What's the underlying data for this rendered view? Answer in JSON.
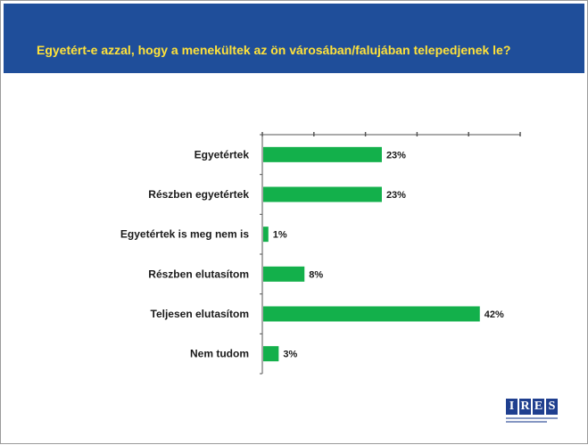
{
  "header": {
    "title": "Egyetért-e azzal, hogy a menekültek az ön városában/falujában telepedjenek le?"
  },
  "colors": {
    "header_bg": "#1f4e9a",
    "title_text": "#ffe23a",
    "bar": "#13b04b",
    "axis": "#555555"
  },
  "logo": {
    "letters": [
      "I",
      "R",
      "E",
      "S"
    ]
  },
  "chart_data": {
    "type": "bar",
    "orientation": "horizontal",
    "categories": [
      "Egyetértek",
      "Részben egyetértek",
      "Egyetértek is meg nem is",
      "Részben elutasítom",
      "Teljesen elutasítom",
      "Nem tudom"
    ],
    "values": [
      23,
      23,
      1,
      8,
      42,
      3
    ],
    "value_labels": [
      "23%",
      "23%",
      "1%",
      "8%",
      "42%",
      "3%"
    ],
    "xlim": [
      0,
      50
    ],
    "x_ticks": [
      0,
      10,
      20,
      30,
      40,
      50
    ],
    "grid": false
  }
}
